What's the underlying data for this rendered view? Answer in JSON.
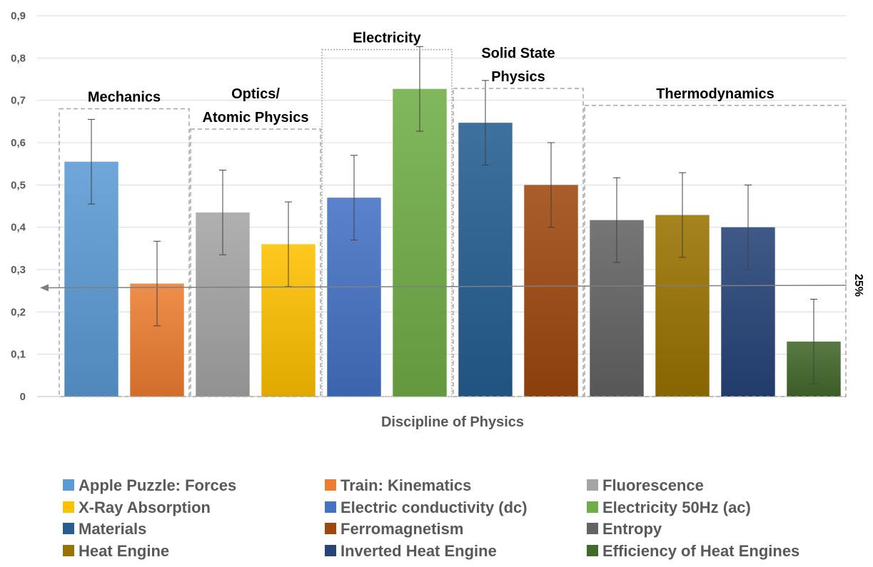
{
  "chart_data": {
    "type": "bar",
    "xlabel": "Discipline of Physics",
    "ylabel": "",
    "ylim": [
      0,
      0.9
    ],
    "yticks": [
      "0",
      "0,1",
      "0,2",
      "0,3",
      "0,4",
      "0,5",
      "0,6",
      "0,7",
      "0,8",
      "0,9"
    ],
    "grid": true,
    "series": [
      {
        "name": "Apple Puzzle: Forces",
        "value": 0.555,
        "error": 0.1,
        "color": "#5b9bd5"
      },
      {
        "name": "Train: Kinematics",
        "value": 0.267,
        "error": 0.1,
        "color": "#ed7d31"
      },
      {
        "name": "Fluorescence",
        "value": 0.435,
        "error": 0.1,
        "color": "#a5a5a5"
      },
      {
        "name": "X-Ray Absorption",
        "value": 0.36,
        "error": 0.1,
        "color": "#ffc000"
      },
      {
        "name": "Electric conductivity (dc)",
        "value": 0.47,
        "error": 0.1,
        "color": "#4472c4"
      },
      {
        "name": "Electricity 50Hz (ac)",
        "value": 0.727,
        "error": 0.1,
        "color": "#70ad47"
      },
      {
        "name": "Materials",
        "value": 0.647,
        "error": 0.1,
        "color": "#255e91"
      },
      {
        "name": "Ferromagnetism",
        "value": 0.5,
        "error": 0.1,
        "color": "#9e480e"
      },
      {
        "name": "Entropy",
        "value": 0.417,
        "error": 0.1,
        "color": "#636363"
      },
      {
        "name": "Heat Engine",
        "value": 0.429,
        "error": 0.1,
        "color": "#997300"
      },
      {
        "name": "Inverted Heat Engine",
        "value": 0.4,
        "error": 0.1,
        "color": "#264478"
      },
      {
        "name": "Efficiency of Heat Engines",
        "value": 0.13,
        "error": 0.1,
        "color": "#43682b"
      }
    ],
    "groups": [
      {
        "label": [
          "Mechanics"
        ],
        "start": 0,
        "end": 1,
        "top": 0.68,
        "style": "dashed"
      },
      {
        "label": [
          "Optics/",
          "Atomic Physics"
        ],
        "start": 2,
        "end": 3,
        "top": 0.632,
        "style": "dashed"
      },
      {
        "label": [
          "Electricity"
        ],
        "start": 4,
        "end": 5,
        "top": 0.82,
        "style": "dotted"
      },
      {
        "label": [
          "Solid State",
          "Physics"
        ],
        "start": 6,
        "end": 7,
        "top": 0.728,
        "style": "dashed"
      },
      {
        "label": [
          "Thermodynamics"
        ],
        "start": 8,
        "end": 11,
        "top": 0.688,
        "style": "dashed"
      }
    ],
    "reference_line": {
      "label": "25%",
      "value_left": 0.257,
      "value_right": 0.263
    },
    "legend_position": "bottom"
  }
}
